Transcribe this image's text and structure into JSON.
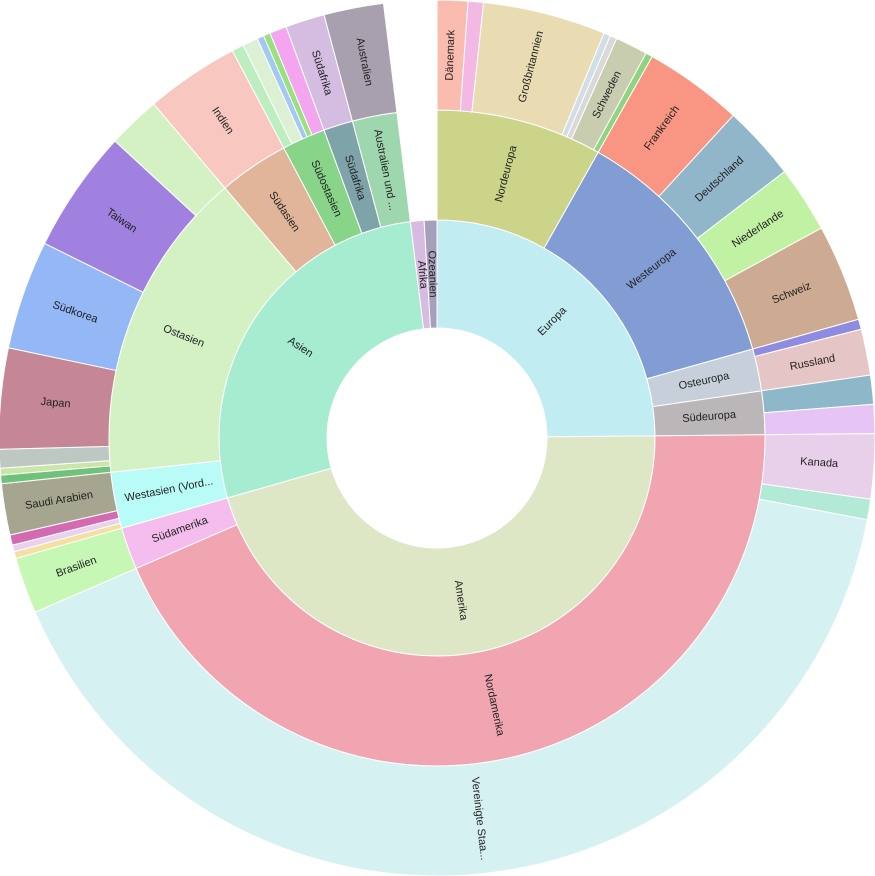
{
  "chart_data": {
    "type": "sunburst",
    "title": "",
    "nodes": [
      {
        "name": "Europa",
        "label": "Europa",
        "value": 39.5,
        "color": "#c0ecf2",
        "children": [
          {
            "name": "Nordeuropa",
            "label": "Nordeuropa",
            "value": 13,
            "color": "#cbd488",
            "children": [
              {
                "name": "Dänemark",
                "label": "Dänemark",
                "value": 1.8,
                "color": "#fbbcb0"
              },
              {
                "name": "Nordeuropa-a",
                "label": "",
                "value": 0.9,
                "color": "#f4b8e4"
              },
              {
                "name": "Großbritannien",
                "label": "Großbritannien",
                "value": 7.2,
                "color": "#e9dcb3"
              },
              {
                "name": "Nordeuropa-b",
                "label": "",
                "value": 0.4,
                "color": "#d2dee5"
              },
              {
                "name": "Nordeuropa-c",
                "label": "",
                "value": 0.4,
                "color": "#d9d9d9"
              },
              {
                "name": "Schweden",
                "label": "Schweden",
                "value": 1.9,
                "color": "#c9cdb0"
              },
              {
                "name": "Nordeuropa-d",
                "label": "",
                "value": 0.4,
                "color": "#8fd47e"
              }
            ]
          },
          {
            "name": "Westeuropa",
            "label": "Westeuropa",
            "value": 19.8,
            "color": "#829dd4",
            "children": [
              {
                "name": "Frankreich",
                "label": "Frankreich",
                "value": 5.8,
                "color": "#f89583"
              },
              {
                "name": "Deutschland",
                "label": "Deutschland",
                "value": 4.4,
                "color": "#91b6c9"
              },
              {
                "name": "Niederlande",
                "label": "Niederlande",
                "value": 3.9,
                "color": "#c1f2a4"
              },
              {
                "name": "Schweiz",
                "label": "Schweiz",
                "value": 5.7,
                "color": "#cdab92"
              }
            ]
          },
          {
            "name": "Osteuropa",
            "label": "Osteuropa",
            "value": 3.3,
            "color": "#c7d0da",
            "children": [
              {
                "name": "Osteuropa-a",
                "label": "",
                "value": 0.6,
                "color": "#8e8ce0"
              },
              {
                "name": "Russland",
                "label": "Russland",
                "value": 2.7,
                "color": "#e5c5c5"
              }
            ]
          },
          {
            "name": "Südeuropa",
            "label": "Südeuropa",
            "value": 3.4,
            "color": "#bbb6b8",
            "children": [
              {
                "name": "Südeuropa-a",
                "label": "",
                "value": 1.7,
                "color": "#8db8c9"
              },
              {
                "name": "Südeuropa-b",
                "label": "",
                "value": 1.7,
                "color": "#e6c5f6"
              }
            ]
          }
        ]
      },
      {
        "name": "Amerika",
        "label": "Amerika",
        "value": 72.7,
        "color": "#dde7c6",
        "children": [
          {
            "name": "Nordamerika",
            "label": "Nordamerika",
            "value": 69.4,
            "color": "#f0a5b0",
            "children": [
              {
                "name": "Kanada",
                "label": "Kanada",
                "value": 3.8,
                "color": "#e9d0ea"
              },
              {
                "name": "Nordamerika-a",
                "label": "",
                "value": 1.2,
                "color": "#b2ead7"
              },
              {
                "name": "Vereinigte Staaten",
                "label": "Vereinigte Staa...",
                "value": 64.4,
                "color": "#d6f1f2"
              }
            ]
          },
          {
            "name": "Südamerika",
            "label": "Südamerika",
            "value": 3.3,
            "color": "#f4bdee",
            "children": [
              {
                "name": "Brasilien",
                "label": "Brasilien",
                "value": 3.3,
                "color": "#c6f7b4"
              }
            ]
          }
        ]
      },
      {
        "name": "Asien",
        "label": "Asien",
        "value": 43.7,
        "color": "#a5ecd1",
        "children": [
          {
            "name": "Westasien",
            "label": "Westasien (Vord...",
            "value": 4.4,
            "color": "#b9fbf7",
            "children": [
              {
                "name": "Westasien-a",
                "label": "",
                "value": 0.4,
                "color": "#f4e0a2"
              },
              {
                "name": "Westasien-b",
                "label": "",
                "value": 0.4,
                "color": "#ead2ee"
              },
              {
                "name": "Westasien-c",
                "label": "",
                "value": 0.6,
                "color": "#d36bb2"
              },
              {
                "name": "Saudi Arabien",
                "label": "Saudi Arabien",
                "value": 3.0,
                "color": "#a6a58f"
              }
            ]
          },
          {
            "name": "Ostasien",
            "label": "Ostasien",
            "value": 24.6,
            "color": "#d3f1c3",
            "children": [
              {
                "name": "Ostasien-a",
                "label": "",
                "value": 0.5,
                "color": "#6fc27a"
              },
              {
                "name": "Ostasien-b",
                "label": "",
                "value": 0.4,
                "color": "#c9e6a8"
              },
              {
                "name": "Ostasien-c",
                "label": "",
                "value": 1.1,
                "color": "#bdc8c3"
              },
              {
                "name": "Japan",
                "label": "Japan",
                "value": 5.9,
                "color": "#c58696"
              },
              {
                "name": "Südkorea",
                "label": "Südkorea",
                "value": 6.4,
                "color": "#94b7f6"
              },
              {
                "name": "Taiwan",
                "label": "Taiwan",
                "value": 7.2,
                "color": "#a181df"
              },
              {
                "name": "Ostasien-d",
                "label": "",
                "value": 3.1,
                "color": "#d3f1c3"
              }
            ]
          },
          {
            "name": "Südasien",
            "label": "Südasien",
            "value": 5.5,
            "color": "#e0b59a",
            "children": [
              {
                "name": "Indien",
                "label": "Indien",
                "value": 5.5,
                "color": "#f8c7c0"
              }
            ]
          },
          {
            "name": "Südostasien",
            "label": "Südostasien",
            "value": 3.4,
            "color": "#88d589",
            "children": [
              {
                "name": "Südostasien-a",
                "label": "",
                "value": 0.7,
                "color": "#bdeebf"
              },
              {
                "name": "Südostasien-b",
                "label": "",
                "value": 0.9,
                "color": "#dcf1d4"
              },
              {
                "name": "Südostasien-c",
                "label": "",
                "value": 0.4,
                "color": "#a3c8f1"
              },
              {
                "name": "Südostasien-d",
                "label": "",
                "value": 0.4,
                "color": "#97e27c"
              },
              {
                "name": "Südostasien-e",
                "label": "",
                "value": 1.0,
                "color": "#f3a6ef"
              }
            ]
          },
          {
            "name": "Südafrika-Asien",
            "label": "Südafrika",
            "value": 2.3,
            "color": "#7ea3a8",
            "children": [
              {
                "name": "Südafrika-Asien-child",
                "label": "Südafrika",
                "value": 2.3,
                "color": "#d5bde2"
              }
            ]
          },
          {
            "name": "Australien und Neuseeland",
            "label": "Australien und ...",
            "value": 3.5,
            "color": "#9ed6ae",
            "children": [
              {
                "name": "Australien",
                "label": "Australien",
                "value": 3.5,
                "color": "#a9a0af"
              }
            ]
          }
        ]
      },
      {
        "name": "Afrika",
        "label": "Afrika",
        "value": 1.6,
        "color": "#d7bbe0",
        "children": []
      },
      {
        "name": "Ozeanien",
        "label": "Ozeanien",
        "value": 1.5,
        "color": "#a6a0bc",
        "children": []
      }
    ]
  }
}
